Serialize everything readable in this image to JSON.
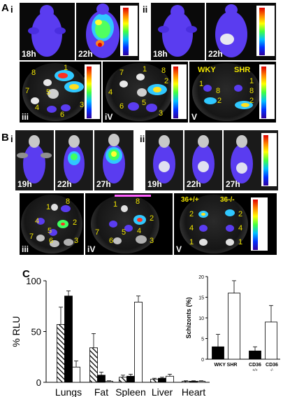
{
  "panels": {
    "A": {
      "letter": "A",
      "i": "i",
      "ii": "ii",
      "iii": "iii",
      "iv": "iV",
      "v": "V",
      "times_i": [
        "18h",
        "22h"
      ],
      "times_ii": [
        "18h",
        "22h"
      ],
      "strains": [
        "WKY",
        "SHR"
      ]
    },
    "B": {
      "letter": "B",
      "i": "i",
      "ii": "ii",
      "iii": "iii",
      "iv": "iV",
      "v": "V",
      "times_i": [
        "19h",
        "22h",
        "27h"
      ],
      "times_ii": [
        "19h",
        "22h",
        "27h"
      ],
      "genotypes": [
        "36+/+",
        "36-/-"
      ]
    },
    "C": {
      "letter": "C"
    }
  },
  "organ_numbers": {
    "Aiii": [
      "1",
      "2",
      "3",
      "4",
      "5",
      "6",
      "7",
      "8"
    ],
    "Aiv": [
      "1",
      "2",
      "3",
      "4",
      "5",
      "6",
      "7",
      "8"
    ],
    "Av": [
      "1",
      "8",
      "2",
      "1",
      "8",
      "2"
    ],
    "Biii": [
      "1",
      "2",
      "3",
      "4",
      "5",
      "6",
      "7",
      "8"
    ],
    "Biv": [
      "1",
      "2",
      "3",
      "4",
      "5",
      "6",
      "7",
      "8"
    ],
    "Bv": [
      "2",
      "2",
      "4",
      "4",
      "1",
      "1"
    ]
  },
  "chart_data": [
    {
      "type": "bar",
      "categories": [
        "Lungs",
        "Fat",
        "Spleen",
        "Liver",
        "Heart"
      ],
      "ylabel": "% RLU",
      "ylim": [
        0,
        100
      ],
      "yticks": [
        "0",
        "50",
        "100"
      ],
      "series": [
        {
          "pattern": "hatched",
          "values": [
            57,
            34,
            5,
            3,
            1
          ],
          "errors": [
            17,
            14,
            2,
            1,
            0.5
          ]
        },
        {
          "pattern": "black",
          "values": [
            85,
            7,
            6,
            4,
            1
          ],
          "errors": [
            5,
            3,
            2,
            1,
            0.5
          ]
        },
        {
          "pattern": "white",
          "values": [
            15,
            1,
            79,
            6,
            1
          ],
          "errors": [
            6,
            0.5,
            6,
            2,
            0.5
          ]
        }
      ]
    },
    {
      "type": "bar",
      "ylabel": "Schizonts (%)",
      "yticks": [
        "0",
        "5",
        "10",
        "15",
        "20"
      ],
      "ylim": [
        0,
        20
      ],
      "categories": [
        "WKY",
        "SHR",
        "CD36 +/+",
        "CD36 -/-"
      ],
      "cat_labels": {
        "g1": "WKY SHR",
        "g2a": "CD36",
        "g2a_sup": "+/+",
        "g2b": "CD36",
        "g2b_sup": "-/-"
      },
      "values": [
        3,
        16,
        2,
        9
      ],
      "errors": [
        3,
        3,
        1,
        4
      ],
      "fills": [
        "#000000",
        "#ffffff",
        "#000000",
        "#ffffff"
      ]
    }
  ]
}
